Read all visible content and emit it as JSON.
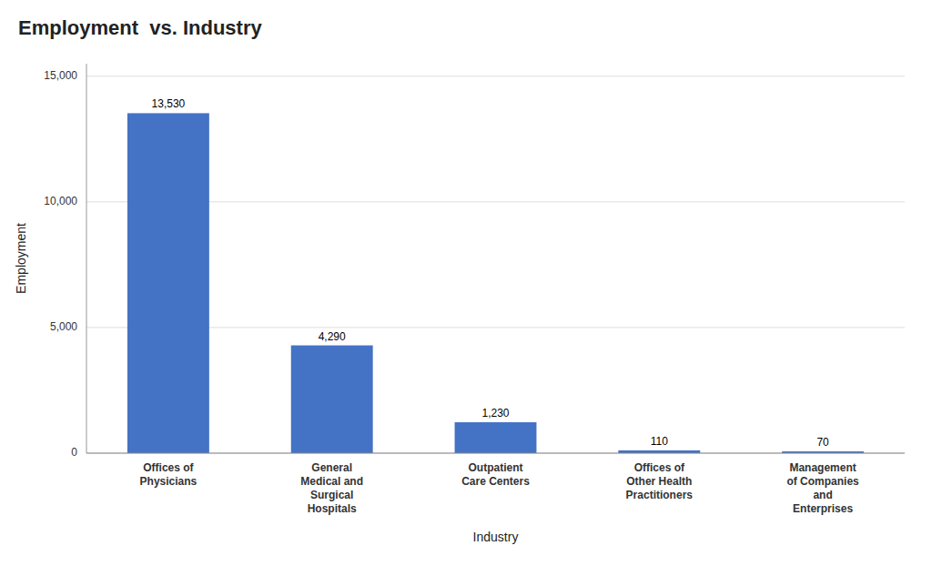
{
  "chart_data": {
    "type": "bar",
    "title": "Employment  vs. Industry",
    "xlabel": "Industry",
    "ylabel": "Employment",
    "categories": [
      "Offices of\nPhysicians",
      "General\nMedical and\nSurgical\nHospitals",
      "Outpatient\nCare Centers",
      "Offices of\nOther Health\nPractitioners",
      "Management\nof Companies\nand\nEnterprises"
    ],
    "values": [
      13530,
      4290,
      1230,
      110,
      70
    ],
    "value_labels": [
      "13,530",
      "4,290",
      "1,230",
      "110",
      "70"
    ],
    "data_labels": true,
    "color": "#4472C4",
    "ylim": [
      0,
      15500
    ],
    "yticks": [
      0,
      {
        "value": 5000,
        "label": "5,000"
      },
      {
        "value": 10000,
        "label": "10,000"
      },
      {
        "value": 15000,
        "label": "15,000"
      }
    ],
    "grid": true
  }
}
